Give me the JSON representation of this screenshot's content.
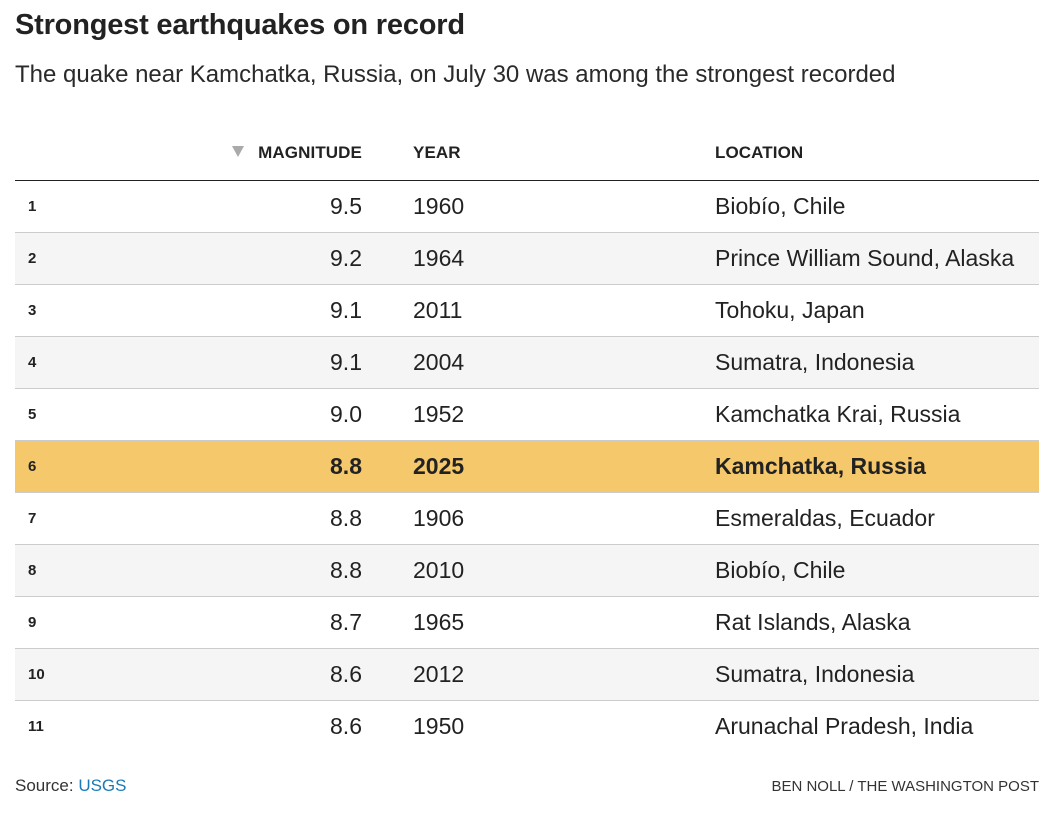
{
  "header": {
    "title": "Strongest earthquakes on record",
    "subtitle": "The quake near Kamchatka, Russia, on July 30 was among the strongest recorded"
  },
  "chart_data": {
    "type": "table",
    "columns": [
      "MAGNITUDE",
      "YEAR",
      "LOCATION"
    ],
    "sorted_by": "MAGNITUDE",
    "sort_direction": "descending",
    "highlight_color": "#f5c96b",
    "rows": [
      {
        "rank": "1",
        "magnitude": "9.5",
        "year": "1960",
        "location": "Biobío, Chile"
      },
      {
        "rank": "2",
        "magnitude": "9.2",
        "year": "1964",
        "location": "Prince William Sound, Alaska"
      },
      {
        "rank": "3",
        "magnitude": "9.1",
        "year": "2011",
        "location": "Tohoku, Japan"
      },
      {
        "rank": "4",
        "magnitude": "9.1",
        "year": "2004",
        "location": "Sumatra, Indonesia"
      },
      {
        "rank": "5",
        "magnitude": "9.0",
        "year": "1952",
        "location": "Kamchatka Krai, Russia"
      },
      {
        "rank": "6",
        "magnitude": "8.8",
        "year": "2025",
        "location": "Kamchatka, Russia",
        "highlighted": true
      },
      {
        "rank": "7",
        "magnitude": "8.8",
        "year": "1906",
        "location": "Esmeraldas, Ecuador"
      },
      {
        "rank": "8",
        "magnitude": "8.8",
        "year": "2010",
        "location": "Biobío, Chile"
      },
      {
        "rank": "9",
        "magnitude": "8.7",
        "year": "1965",
        "location": "Rat Islands, Alaska"
      },
      {
        "rank": "10",
        "magnitude": "8.6",
        "year": "2012",
        "location": "Sumatra, Indonesia"
      },
      {
        "rank": "11",
        "magnitude": "8.6",
        "year": "1950",
        "location": "Arunachal Pradesh, India"
      }
    ]
  },
  "footer": {
    "source_label": "Source: ",
    "source_link": "USGS",
    "credit": "BEN NOLL / THE WASHINGTON POST"
  }
}
